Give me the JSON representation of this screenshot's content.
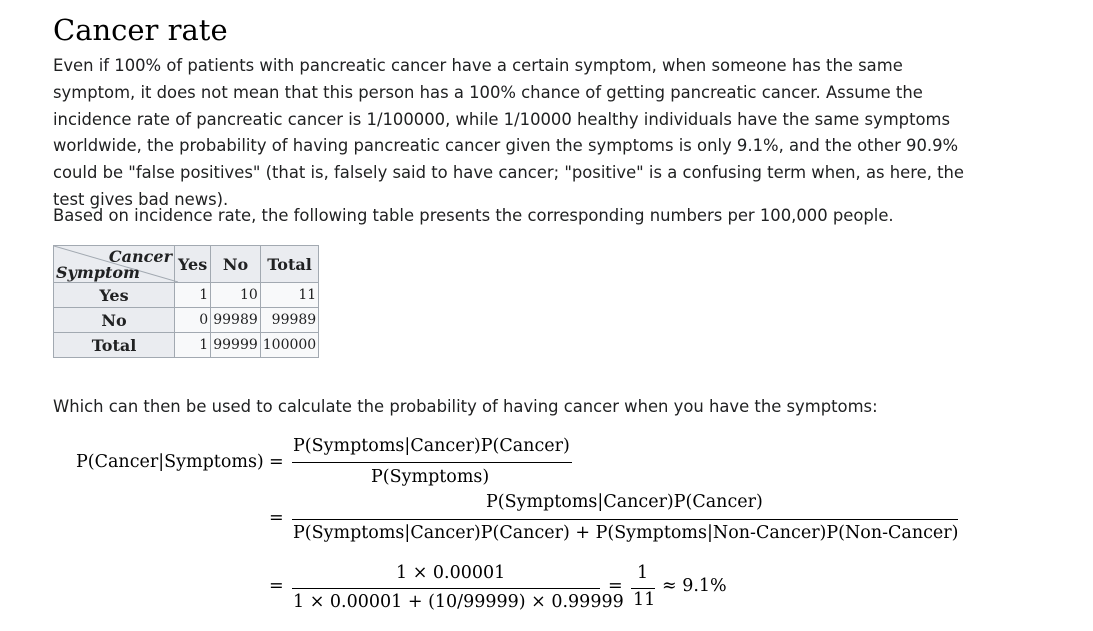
{
  "section": {
    "title": "Cancer rate"
  },
  "paragraphs": {
    "intro": "Even if 100% of patients with pancreatic cancer have a certain symptom, when someone has the same symptom, it does not mean that this person has a 100% chance of getting pancreatic cancer. Assume the incidence rate of pancreatic cancer is 1/100000, while 1/10000 healthy individuals have the same symptoms worldwide, the probability of having pancreatic cancer given the symptoms is only 9.1%, and the other 90.9% could be \"false positives\" (that is, falsely said to have cancer; \"positive\" is a confusing term when, as here, the test gives bad news).",
    "table_intro": "Based on incidence rate, the following table presents the corresponding numbers per 100,000 people.",
    "formula_intro": "Which can then be used to calculate the probability of having cancer when you have the symptoms:"
  },
  "table": {
    "corner_top": "Cancer",
    "corner_bottom": "Symptom",
    "columns": [
      "Yes",
      "No",
      "Total"
    ],
    "rows": [
      {
        "label": "Yes",
        "cells": [
          "1",
          "10",
          "11"
        ]
      },
      {
        "label": "No",
        "cells": [
          "0",
          "99989",
          "99989"
        ]
      },
      {
        "label": "Total",
        "cells": [
          "1",
          "99999",
          "100000"
        ]
      }
    ]
  },
  "formula": {
    "lhs": "P(Cancer|Symptoms)",
    "eq": "=",
    "line1_num": "P(Symptoms|Cancer)P(Cancer)",
    "line1_den": "P(Symptoms)",
    "line2_num": "P(Symptoms|Cancer)P(Cancer)",
    "line2_den": "P(Symptoms|Cancer)P(Cancer) + P(Symptoms|Non-Cancer)P(Non-Cancer)",
    "line3_num": "1 × 0.00001",
    "line3_den": "1 × 0.00001 + (10/99999) × 0.99999",
    "line3_frac_num": "1",
    "line3_frac_den": "11",
    "line3_result": "≈ 9.1%"
  }
}
